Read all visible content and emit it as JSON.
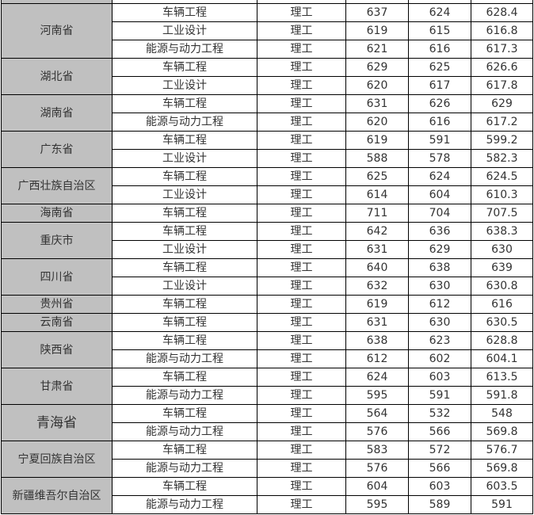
{
  "colors": {
    "province_bg": "#c0c0c0",
    "border": "#000000",
    "text": "#333333"
  },
  "groups": [
    {
      "province": "河南省",
      "rows": [
        [
          "车辆工程",
          "理工",
          "637",
          "624",
          "628.4"
        ],
        [
          "工业设计",
          "理工",
          "619",
          "615",
          "616.8"
        ],
        [
          "能源与动力工程",
          "理工",
          "621",
          "616",
          "617.3"
        ]
      ]
    },
    {
      "province": "湖北省",
      "rows": [
        [
          "车辆工程",
          "理工",
          "629",
          "625",
          "626.6"
        ],
        [
          "工业设计",
          "理工",
          "620",
          "617",
          "617.8"
        ]
      ]
    },
    {
      "province": "湖南省",
      "rows": [
        [
          "车辆工程",
          "理工",
          "631",
          "626",
          "629"
        ],
        [
          "能源与动力工程",
          "理工",
          "620",
          "616",
          "617.2"
        ]
      ]
    },
    {
      "province": "广东省",
      "rows": [
        [
          "车辆工程",
          "理工",
          "619",
          "591",
          "599.2"
        ],
        [
          "工业设计",
          "理工",
          "588",
          "578",
          "582.3"
        ]
      ]
    },
    {
      "province": "广西壮族自治区",
      "rows": [
        [
          "车辆工程",
          "理工",
          "625",
          "624",
          "624.5"
        ],
        [
          "工业设计",
          "理工",
          "614",
          "604",
          "610.3"
        ]
      ]
    },
    {
      "province": "海南省",
      "rows": [
        [
          "车辆工程",
          "理工",
          "711",
          "704",
          "707.5"
        ]
      ]
    },
    {
      "province": "重庆市",
      "rows": [
        [
          "车辆工程",
          "理工",
          "642",
          "636",
          "638.3"
        ],
        [
          "工业设计",
          "理工",
          "631",
          "629",
          "630"
        ]
      ]
    },
    {
      "province": "四川省",
      "rows": [
        [
          "车辆工程",
          "理工",
          "640",
          "638",
          "639"
        ],
        [
          "工业设计",
          "理工",
          "632",
          "630",
          "630.8"
        ]
      ]
    },
    {
      "province": "贵州省",
      "rows": [
        [
          "车辆工程",
          "理工",
          "619",
          "612",
          "616"
        ]
      ]
    },
    {
      "province": "云南省",
      "rows": [
        [
          "车辆工程",
          "理工",
          "631",
          "630",
          "630.5"
        ]
      ]
    },
    {
      "province": "陕西省",
      "rows": [
        [
          "车辆工程",
          "理工",
          "638",
          "623",
          "628.8"
        ],
        [
          "能源与动力工程",
          "理工",
          "612",
          "602",
          "604.1"
        ]
      ]
    },
    {
      "province": "甘肃省",
      "rows": [
        [
          "车辆工程",
          "理工",
          "624",
          "603",
          "613.5"
        ],
        [
          "能源与动力工程",
          "理工",
          "595",
          "591",
          "591.8"
        ]
      ]
    },
    {
      "province": "青海省",
      "large": true,
      "rows": [
        [
          "车辆工程",
          "理工",
          "564",
          "532",
          "548"
        ],
        [
          "能源与动力工程",
          "理工",
          "576",
          "566",
          "569.8"
        ]
      ]
    },
    {
      "province": "宁夏回族自治区",
      "rows": [
        [
          "车辆工程",
          "理工",
          "583",
          "572",
          "576.7"
        ],
        [
          "能源与动力工程",
          "理工",
          "576",
          "566",
          "569.8"
        ]
      ]
    },
    {
      "province": "新疆维吾尔自治区",
      "rows": [
        [
          "车辆工程",
          "理工",
          "604",
          "603",
          "603.5"
        ],
        [
          "能源与动力工程",
          "理工",
          "595",
          "589",
          "591"
        ]
      ]
    }
  ]
}
